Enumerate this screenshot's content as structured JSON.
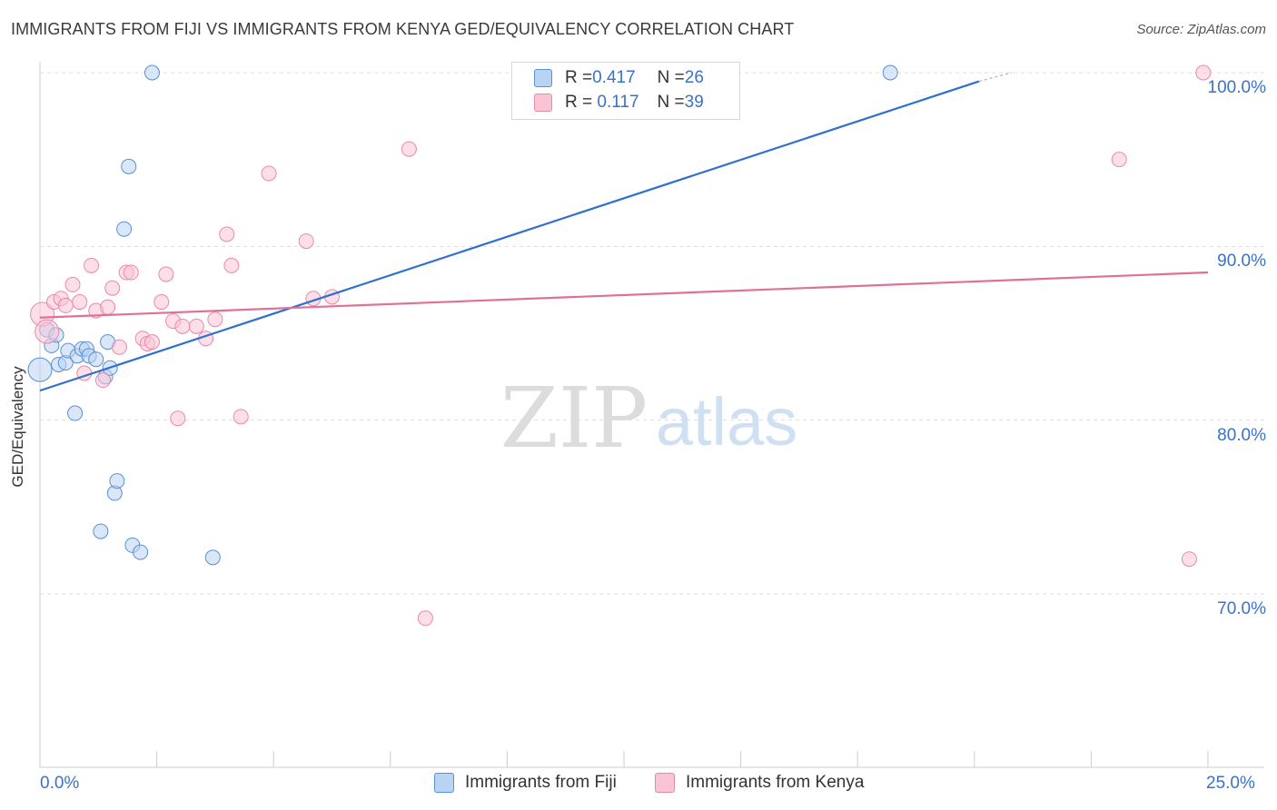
{
  "title": "IMMIGRANTS FROM FIJI VS IMMIGRANTS FROM KENYA GED/EQUIVALENCY CORRELATION CHART",
  "source": "Source: ZipAtlas.com",
  "watermark": {
    "zip": "ZIP",
    "atlas": "atlas"
  },
  "legend": {
    "fiji": {
      "r_label": "R = ",
      "r_value": "0.417",
      "n_label": "N = ",
      "n_value": "26"
    },
    "kenya": {
      "r_label": "R = ",
      "r_value": " 0.117",
      "n_label": "N = ",
      "n_value": "39"
    }
  },
  "colors": {
    "fiji_fill": "#b9d3f3",
    "fiji_stroke": "#5b8fd6",
    "fiji_line": "#2f6fcf",
    "kenya_fill": "#f9c5d5",
    "kenya_stroke": "#e88aa8",
    "kenya_line": "#e0709a",
    "tick_text": "#3a72c8",
    "grid": "#dedede"
  },
  "chart_data": {
    "type": "scatter",
    "title": "IMMIGRANTS FROM FIJI VS IMMIGRANTS FROM KENYA GED/EQUIVALENCY CORRELATION CHART",
    "xlabel": "",
    "ylabel": "GED/Equivalency",
    "xlim": [
      0,
      25
    ],
    "ylim": [
      60,
      102
    ],
    "x_tick_labels": {
      "left": "0.0%",
      "right": "25.0%"
    },
    "y_ticks": [
      {
        "value": 100,
        "label": "100.0%"
      },
      {
        "value": 90,
        "label": "90.0%"
      },
      {
        "value": 80,
        "label": "80.0%"
      },
      {
        "value": 70,
        "label": "70.0%"
      }
    ],
    "series": [
      {
        "name": "Immigrants from Fiji",
        "r": 0.417,
        "n": 26,
        "trend": {
          "x": [
            0,
            20.1
          ],
          "y": [
            81.7,
            99.5
          ],
          "dashed_to": [
            20.8,
            100.0
          ]
        },
        "points": [
          {
            "x": 0.0,
            "y": 82.9,
            "big": true
          },
          {
            "x": 0.15,
            "y": 85.2
          },
          {
            "x": 0.25,
            "y": 84.3
          },
          {
            "x": 0.35,
            "y": 84.9
          },
          {
            "x": 0.4,
            "y": 83.2
          },
          {
            "x": 0.55,
            "y": 83.3
          },
          {
            "x": 0.6,
            "y": 84.0
          },
          {
            "x": 0.75,
            "y": 80.4
          },
          {
            "x": 0.8,
            "y": 83.7
          },
          {
            "x": 0.9,
            "y": 84.1
          },
          {
            "x": 1.0,
            "y": 84.1
          },
          {
            "x": 1.05,
            "y": 83.7
          },
          {
            "x": 1.2,
            "y": 83.5
          },
          {
            "x": 1.3,
            "y": 73.6
          },
          {
            "x": 1.4,
            "y": 82.5
          },
          {
            "x": 1.45,
            "y": 84.5
          },
          {
            "x": 1.5,
            "y": 83.0
          },
          {
            "x": 1.6,
            "y": 75.8
          },
          {
            "x": 1.65,
            "y": 76.5
          },
          {
            "x": 1.8,
            "y": 91.0
          },
          {
            "x": 1.9,
            "y": 94.6
          },
          {
            "x": 1.98,
            "y": 72.8
          },
          {
            "x": 2.15,
            "y": 72.4
          },
          {
            "x": 2.4,
            "y": 100.0
          },
          {
            "x": 3.7,
            "y": 72.1
          },
          {
            "x": 18.2,
            "y": 100.0
          }
        ]
      },
      {
        "name": "Immigrants from Kenya",
        "r": 0.117,
        "n": 39,
        "trend": {
          "x": [
            0,
            25
          ],
          "y": [
            85.9,
            88.5
          ]
        },
        "points": [
          {
            "x": 0.05,
            "y": 86.1,
            "big": true
          },
          {
            "x": 0.15,
            "y": 85.1,
            "big": true
          },
          {
            "x": 0.3,
            "y": 86.8
          },
          {
            "x": 0.45,
            "y": 87.0
          },
          {
            "x": 0.55,
            "y": 86.6
          },
          {
            "x": 0.7,
            "y": 87.8
          },
          {
            "x": 0.85,
            "y": 86.8
          },
          {
            "x": 0.95,
            "y": 82.7
          },
          {
            "x": 1.1,
            "y": 88.9
          },
          {
            "x": 1.2,
            "y": 86.3
          },
          {
            "x": 1.35,
            "y": 82.3
          },
          {
            "x": 1.45,
            "y": 86.5
          },
          {
            "x": 1.55,
            "y": 87.6
          },
          {
            "x": 1.7,
            "y": 84.2
          },
          {
            "x": 1.85,
            "y": 88.5
          },
          {
            "x": 1.95,
            "y": 88.5
          },
          {
            "x": 2.2,
            "y": 84.7
          },
          {
            "x": 2.3,
            "y": 84.4
          },
          {
            "x": 2.4,
            "y": 84.5
          },
          {
            "x": 2.6,
            "y": 86.8
          },
          {
            "x": 2.7,
            "y": 88.4
          },
          {
            "x": 2.85,
            "y": 85.7
          },
          {
            "x": 2.95,
            "y": 80.1
          },
          {
            "x": 3.05,
            "y": 85.4
          },
          {
            "x": 3.35,
            "y": 85.4
          },
          {
            "x": 3.55,
            "y": 84.7
          },
          {
            "x": 3.75,
            "y": 85.8
          },
          {
            "x": 4.0,
            "y": 90.7
          },
          {
            "x": 4.1,
            "y": 88.9
          },
          {
            "x": 4.3,
            "y": 80.2
          },
          {
            "x": 4.9,
            "y": 94.2
          },
          {
            "x": 5.7,
            "y": 90.3
          },
          {
            "x": 5.85,
            "y": 87.0
          },
          {
            "x": 6.25,
            "y": 87.1
          },
          {
            "x": 7.9,
            "y": 95.6
          },
          {
            "x": 8.25,
            "y": 68.6
          },
          {
            "x": 23.1,
            "y": 95.0
          },
          {
            "x": 24.6,
            "y": 72.0
          },
          {
            "x": 24.9,
            "y": 100.0
          }
        ]
      }
    ]
  }
}
